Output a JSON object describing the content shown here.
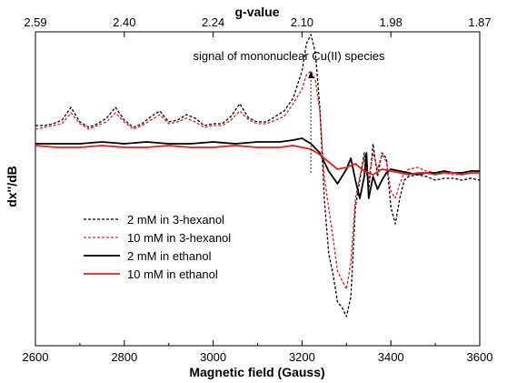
{
  "chart_data": {
    "type": "line",
    "title": "",
    "xlabel": "Magnetic field (Gauss)",
    "ylabel": "dx''/dB",
    "top_axis_label": "g-value",
    "xlim": [
      2600,
      3600
    ],
    "ylim": [
      -100,
      100
    ],
    "grid": false,
    "legend_placement": "bottom-left",
    "x_ticks": [
      2600,
      2800,
      3000,
      3200,
      3400,
      3600
    ],
    "x_tick_labels": [
      "2600",
      "2800",
      "3000",
      "3200",
      "3400",
      "3600"
    ],
    "top_ticks": [
      {
        "field": 2600,
        "label": "2.59"
      },
      {
        "field": 2800,
        "label": "2.40"
      },
      {
        "field": 3000,
        "label": "2.24"
      },
      {
        "field": 3200,
        "label": "2.10"
      },
      {
        "field": 3400,
        "label": "1.98"
      },
      {
        "field": 3600,
        "label": "1.87"
      }
    ],
    "annotation": {
      "text": "signal of mononuclear Cu(II) species",
      "field": 3220
    },
    "series": [
      {
        "name": "2 mM in 3-hexanol",
        "color": "#000000",
        "dash": "dashed",
        "x": [
          2600,
          2620,
          2640,
          2660,
          2680,
          2700,
          2720,
          2740,
          2760,
          2780,
          2800,
          2820,
          2840,
          2860,
          2880,
          2900,
          2920,
          2940,
          2960,
          2980,
          3000,
          3020,
          3040,
          3060,
          3080,
          3100,
          3120,
          3140,
          3160,
          3180,
          3200,
          3210,
          3220,
          3230,
          3240,
          3250,
          3260,
          3270,
          3280,
          3290,
          3300,
          3310,
          3320,
          3330,
          3340,
          3350,
          3360,
          3370,
          3380,
          3390,
          3400,
          3410,
          3420,
          3430,
          3440,
          3460,
          3480,
          3500,
          3520,
          3540,
          3560,
          3580,
          3600
        ],
        "y": [
          10,
          10,
          11,
          13,
          20,
          12,
          9,
          11,
          14,
          20,
          13,
          9,
          11,
          15,
          18,
          12,
          13,
          16,
          14,
          10,
          11,
          11,
          15,
          22,
          14,
          12,
          12,
          15,
          18,
          25,
          40,
          55,
          60,
          50,
          20,
          -30,
          -60,
          -72,
          -87,
          -90,
          -95,
          -84,
          -35,
          -20,
          -5,
          -25,
          0,
          -18,
          -5,
          -8,
          -35,
          -44,
          -30,
          -20,
          -18,
          -17,
          -18,
          -20,
          -19,
          -19,
          -20,
          -19,
          -20
        ]
      },
      {
        "name": "10 mM in 3-hexanol",
        "color": "#e02020",
        "dash": "dashed",
        "x": [
          2600,
          2620,
          2640,
          2660,
          2680,
          2700,
          2720,
          2740,
          2760,
          2780,
          2800,
          2820,
          2840,
          2860,
          2880,
          2900,
          2920,
          2940,
          2960,
          2980,
          3000,
          3020,
          3040,
          3060,
          3080,
          3100,
          3120,
          3140,
          3160,
          3180,
          3200,
          3210,
          3220,
          3230,
          3240,
          3250,
          3260,
          3270,
          3280,
          3290,
          3300,
          3310,
          3320,
          3330,
          3340,
          3350,
          3360,
          3370,
          3380,
          3390,
          3400,
          3410,
          3420,
          3430,
          3440,
          3460,
          3480,
          3500,
          3520,
          3540,
          3560,
          3580,
          3600
        ],
        "y": [
          8,
          9,
          10,
          11,
          17,
          11,
          8,
          10,
          12,
          17,
          12,
          8,
          10,
          13,
          16,
          11,
          12,
          14,
          12,
          9,
          10,
          10,
          13,
          18,
          13,
          11,
          11,
          13,
          15,
          22,
          30,
          38,
          40,
          35,
          18,
          -18,
          -35,
          -52,
          -70,
          -75,
          -80,
          -65,
          -30,
          -18,
          -8,
          -20,
          -5,
          -14,
          -6,
          -10,
          -26,
          -30,
          -22,
          -16,
          -14,
          -13,
          -15,
          -16,
          -16,
          -17,
          -17,
          -16,
          -16
        ]
      },
      {
        "name": "2 mM in ethanol",
        "color": "#000000",
        "dash": "solid",
        "x": [
          2600,
          2650,
          2700,
          2750,
          2800,
          2850,
          2900,
          2950,
          3000,
          3050,
          3100,
          3150,
          3180,
          3200,
          3220,
          3240,
          3260,
          3280,
          3300,
          3310,
          3320,
          3330,
          3340,
          3345,
          3350,
          3360,
          3370,
          3380,
          3390,
          3400,
          3420,
          3440,
          3460,
          3480,
          3500,
          3520,
          3540,
          3560,
          3580,
          3600
        ],
        "y": [
          0,
          0,
          0,
          1,
          0,
          1,
          0,
          0,
          1,
          0,
          1,
          1,
          2,
          3,
          0,
          -5,
          -15,
          -22,
          -14,
          -8,
          -20,
          -30,
          -18,
          -5,
          -30,
          -18,
          -25,
          -20,
          -16,
          -14,
          -15,
          -16,
          -17,
          -16,
          -16,
          -15,
          -16,
          -16,
          -15,
          -15
        ]
      },
      {
        "name": "10 mM in ethanol",
        "color": "#e02020",
        "dash": "solid",
        "x": [
          2600,
          2650,
          2700,
          2750,
          2800,
          2850,
          2900,
          2950,
          3000,
          3050,
          3100,
          3150,
          3180,
          3200,
          3220,
          3240,
          3260,
          3280,
          3300,
          3320,
          3340,
          3360,
          3380,
          3400,
          3420,
          3440,
          3460,
          3480,
          3500,
          3520,
          3540,
          3560,
          3580,
          3600
        ],
        "y": [
          -1,
          -2,
          -2,
          -1,
          -2,
          -2,
          -1,
          -2,
          -2,
          -1,
          -2,
          -2,
          -1,
          -2,
          -3,
          -6,
          -10,
          -14,
          -13,
          -11,
          -15,
          -17,
          -14,
          -15,
          -16,
          -17,
          -16,
          -16,
          -17,
          -16,
          -16,
          -17,
          -16,
          -16
        ]
      }
    ]
  }
}
